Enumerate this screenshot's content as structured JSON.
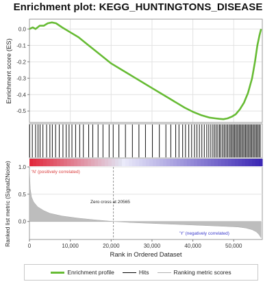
{
  "title": "Enrichment plot: KEGG_HUNTINGTONS_DISEASE",
  "legend": {
    "items": [
      {
        "label": "Enrichment profile",
        "color": "#66bb33",
        "style": "thick"
      },
      {
        "label": "Hits",
        "color": "#000000",
        "style": "thin"
      },
      {
        "label": "Ranking metric scores",
        "color": "#b0b0b0",
        "style": "thin"
      }
    ]
  },
  "chart_data": {
    "type": "line",
    "xlabel": "Rank in Ordered Dataset",
    "xlim": [
      0,
      57000
    ],
    "xticks": [
      0,
      10000,
      20000,
      30000,
      40000,
      50000
    ],
    "xtick_labels": [
      "0",
      "10,000",
      "20,000",
      "30,000",
      "40,000",
      "50,000"
    ],
    "enrichment": {
      "ylabel": "Enrichment score (ES)",
      "ylim": [
        -0.57,
        0.06
      ],
      "yticks": [
        0.0,
        -0.1,
        -0.2,
        -0.3,
        -0.4,
        -0.5
      ],
      "ytick_labels": [
        "0.0",
        "-0.1",
        "-0.2",
        "-0.3",
        "-0.4",
        "-0.5"
      ],
      "x": [
        0,
        800,
        1500,
        2500,
        3500,
        4500,
        5500,
        6500,
        8000,
        10000,
        12000,
        14000,
        16000,
        18000,
        20000,
        22000,
        24000,
        26000,
        28000,
        30000,
        32000,
        34000,
        36000,
        38000,
        40000,
        42000,
        44000,
        45500,
        46500,
        47500,
        48500,
        49500,
        50500,
        51500,
        52500,
        53500,
        54500,
        55200,
        55800,
        56300,
        56700
      ],
      "y": [
        0.0,
        0.01,
        0.0,
        0.02,
        0.02,
        0.035,
        0.04,
        0.035,
        0.01,
        -0.02,
        -0.05,
        -0.09,
        -0.13,
        -0.17,
        -0.21,
        -0.24,
        -0.27,
        -0.3,
        -0.33,
        -0.36,
        -0.39,
        -0.42,
        -0.45,
        -0.48,
        -0.505,
        -0.525,
        -0.54,
        -0.545,
        -0.548,
        -0.55,
        -0.545,
        -0.535,
        -0.52,
        -0.49,
        -0.45,
        -0.39,
        -0.3,
        -0.2,
        -0.1,
        -0.04,
        0.0
      ]
    },
    "ranking": {
      "ylabel": "Ranked list metric (Signal2Noise)",
      "ylim": [
        -0.33,
        1.0
      ],
      "yticks": [
        1.0,
        0.5,
        0.0
      ],
      "ytick_labels": [
        "1.0",
        "0.5",
        "0.0"
      ],
      "zero_cross": 20565,
      "zero_cross_label": "Zero cross at 20565",
      "pos_label": "'N' (positively correlated)",
      "neg_label": "'Y' (negatively correlated)",
      "curve_x": [
        0,
        200,
        500,
        1000,
        2000,
        3500,
        5000,
        8000,
        12000,
        16000,
        20565,
        25000,
        30000,
        35000,
        40000,
        45000,
        48000,
        51000,
        53000,
        54500,
        55500,
        56200,
        56700
      ],
      "curve_y": [
        0.95,
        0.6,
        0.45,
        0.36,
        0.27,
        0.2,
        0.15,
        0.1,
        0.06,
        0.03,
        0.0,
        -0.02,
        -0.035,
        -0.05,
        -0.065,
        -0.08,
        -0.09,
        -0.1,
        -0.12,
        -0.15,
        -0.19,
        -0.24,
        -0.3
      ]
    },
    "hits": [
      50,
      700,
      1500,
      2100,
      2600,
      3300,
      4200,
      5000,
      5600,
      6400,
      7300,
      8200,
      9000,
      9700,
      10400,
      11300,
      12300,
      13200,
      14500,
      15500,
      16800,
      18000,
      19500,
      20500,
      21900,
      23500,
      25200,
      26800,
      28400,
      30100,
      31800,
      33400,
      34600,
      35800,
      36600,
      37500,
      38200,
      39000,
      39700,
      40400,
      41000,
      41600,
      42200,
      42800,
      43400,
      43900,
      44400,
      44900,
      45300,
      45700,
      46100,
      46500,
      46800,
      47200,
      47600,
      47900,
      48300,
      48600,
      49000,
      49300,
      49600,
      49900,
      50200,
      50500,
      50800,
      51100,
      51400,
      51700,
      52000,
      52300,
      52600,
      52900,
      53200,
      53500,
      53800,
      54100,
      54400,
      54700,
      55000,
      55300,
      55600,
      55900,
      56200,
      56500
    ],
    "grid": true
  }
}
